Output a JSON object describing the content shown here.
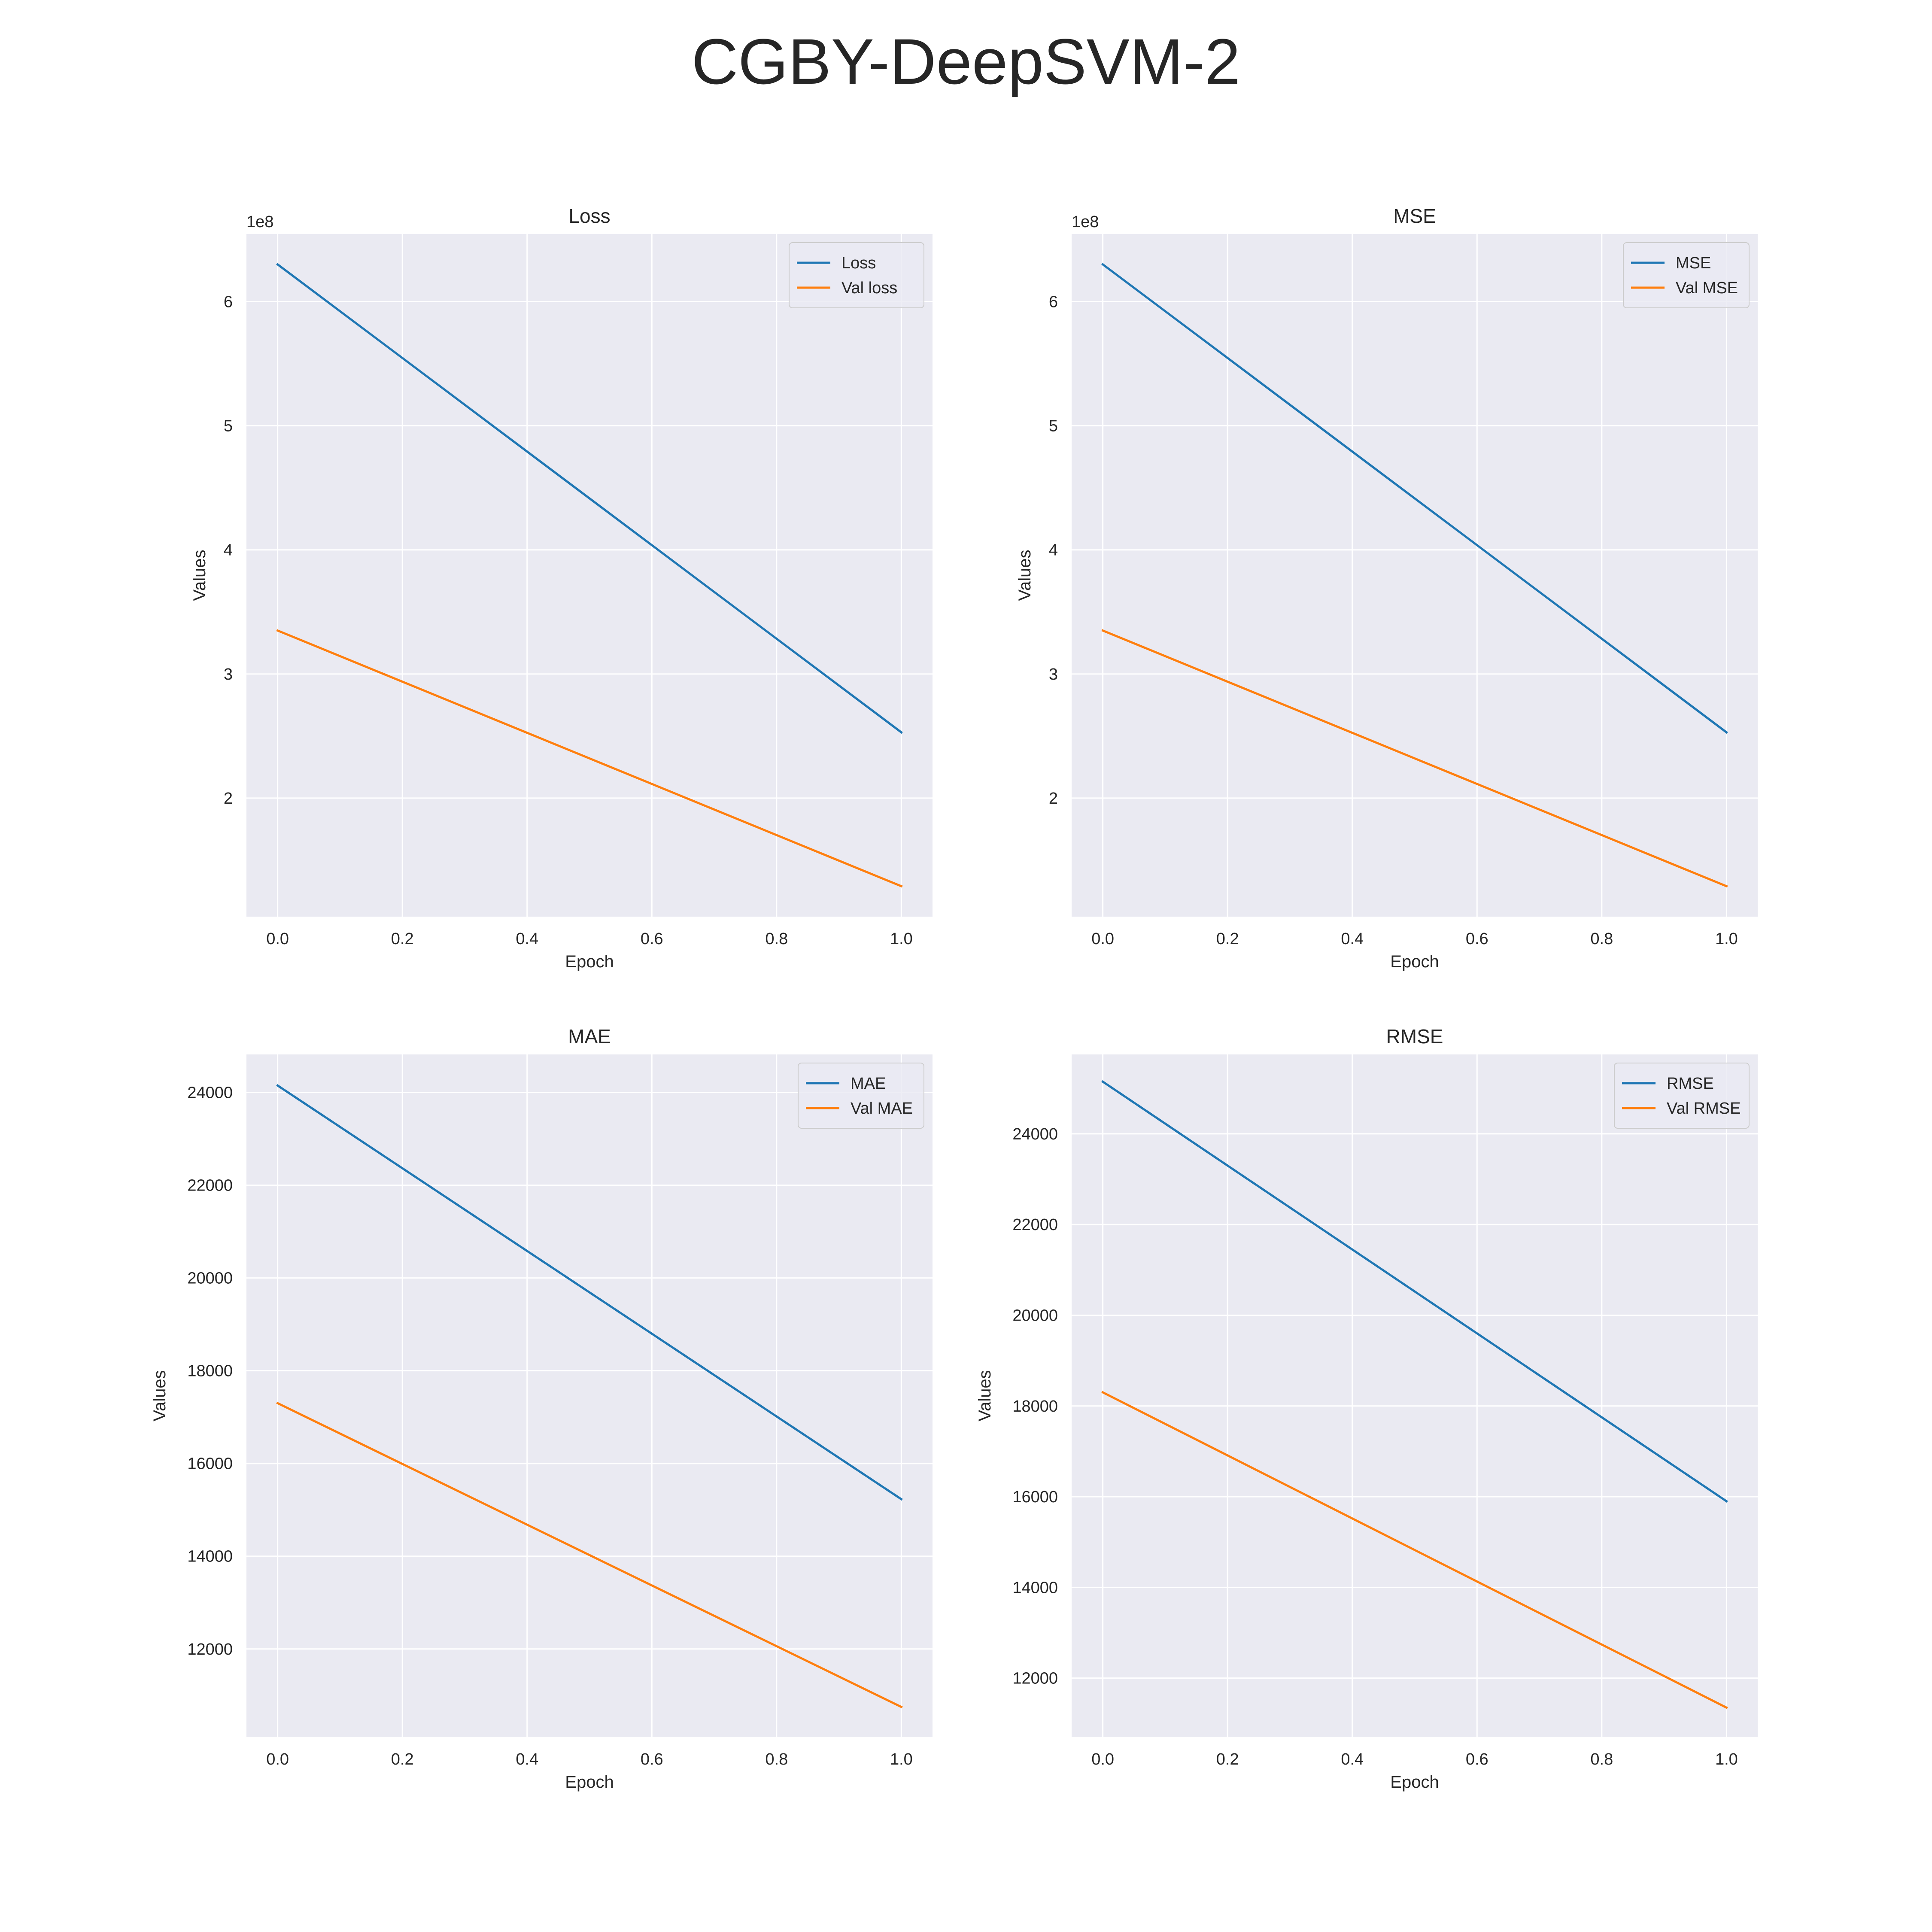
{
  "figure": {
    "title": "CGBY-DeepSVM-2"
  },
  "chart_data": [
    {
      "type": "line",
      "title": "Loss",
      "xlabel": "Epoch",
      "ylabel": "Values",
      "x": [
        0,
        1
      ],
      "xticks": [
        0.0,
        0.2,
        0.4,
        0.6,
        0.8,
        1.0
      ],
      "xtick_labels": [
        "0.0",
        "0.2",
        "0.4",
        "0.6",
        "0.8",
        "1.0"
      ],
      "xlim": [
        -0.05,
        1.05
      ],
      "yticks": [
        200000000,
        300000000,
        400000000,
        500000000,
        600000000
      ],
      "ytick_labels": [
        "2",
        "3",
        "4",
        "5",
        "6"
      ],
      "y_offset_label": "1e8",
      "ylim": [
        104500000,
        654500000
      ],
      "grid": true,
      "legend": "top-right",
      "series": [
        {
          "name": "Loss",
          "color": "#1f77b4",
          "values": [
            630000000,
            253000000
          ]
        },
        {
          "name": "Val loss",
          "color": "#ff7f0e",
          "values": [
            335000000,
            129000000
          ]
        }
      ]
    },
    {
      "type": "line",
      "title": "MSE",
      "xlabel": "Epoch",
      "ylabel": "Values",
      "x": [
        0,
        1
      ],
      "xticks": [
        0.0,
        0.2,
        0.4,
        0.6,
        0.8,
        1.0
      ],
      "xtick_labels": [
        "0.0",
        "0.2",
        "0.4",
        "0.6",
        "0.8",
        "1.0"
      ],
      "xlim": [
        -0.05,
        1.05
      ],
      "yticks": [
        200000000,
        300000000,
        400000000,
        500000000,
        600000000
      ],
      "ytick_labels": [
        "2",
        "3",
        "4",
        "5",
        "6"
      ],
      "y_offset_label": "1e8",
      "ylim": [
        104500000,
        654500000
      ],
      "grid": true,
      "legend": "top-right",
      "series": [
        {
          "name": "MSE",
          "color": "#1f77b4",
          "values": [
            630000000,
            253000000
          ]
        },
        {
          "name": "Val MSE",
          "color": "#ff7f0e",
          "values": [
            335000000,
            129000000
          ]
        }
      ]
    },
    {
      "type": "line",
      "title": "MAE",
      "xlabel": "Epoch",
      "ylabel": "Values",
      "x": [
        0,
        1
      ],
      "xticks": [
        0.0,
        0.2,
        0.4,
        0.6,
        0.8,
        1.0
      ],
      "xtick_labels": [
        "0.0",
        "0.2",
        "0.4",
        "0.6",
        "0.8",
        "1.0"
      ],
      "xlim": [
        -0.05,
        1.05
      ],
      "yticks": [
        12000,
        14000,
        16000,
        18000,
        20000,
        22000,
        24000
      ],
      "ytick_labels": [
        "12000",
        "14000",
        "16000",
        "18000",
        "20000",
        "22000",
        "24000"
      ],
      "y_offset_label": "",
      "ylim": [
        10100,
        24820
      ],
      "grid": true,
      "legend": "top-right",
      "series": [
        {
          "name": "MAE",
          "color": "#1f77b4",
          "values": [
            24150,
            15230
          ]
        },
        {
          "name": "Val MAE",
          "color": "#ff7f0e",
          "values": [
            17300,
            10750
          ]
        }
      ]
    },
    {
      "type": "line",
      "title": "RMSE",
      "xlabel": "Epoch",
      "ylabel": "Values",
      "x": [
        0,
        1
      ],
      "xticks": [
        0.0,
        0.2,
        0.4,
        0.6,
        0.8,
        1.0
      ],
      "xtick_labels": [
        "0.0",
        "0.2",
        "0.4",
        "0.6",
        "0.8",
        "1.0"
      ],
      "xlim": [
        -0.05,
        1.05
      ],
      "yticks": [
        12000,
        14000,
        16000,
        18000,
        20000,
        22000,
        24000
      ],
      "ytick_labels": [
        "12000",
        "14000",
        "16000",
        "18000",
        "20000",
        "22000",
        "24000"
      ],
      "y_offset_label": "",
      "ylim": [
        10700,
        25750
      ],
      "grid": true,
      "legend": "top-right",
      "series": [
        {
          "name": "RMSE",
          "color": "#1f77b4",
          "values": [
            25150,
            15900
          ]
        },
        {
          "name": "Val RMSE",
          "color": "#ff7f0e",
          "values": [
            18300,
            11350
          ]
        }
      ]
    }
  ]
}
